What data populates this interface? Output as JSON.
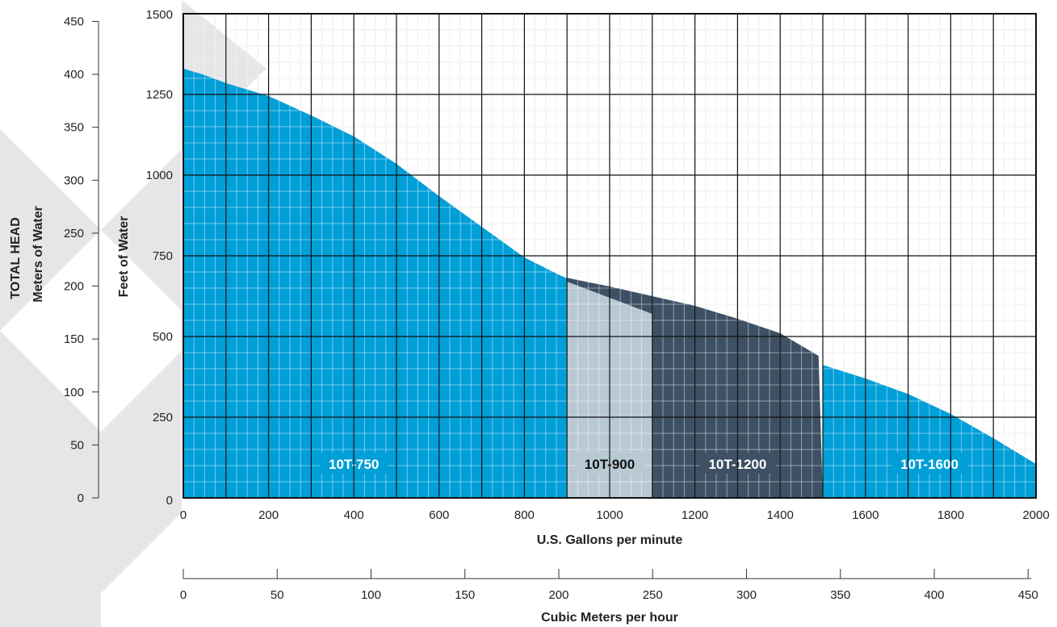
{
  "chart_data": {
    "type": "area",
    "title": "",
    "left_axis": {
      "label_line1": "TOTAL HEAD",
      "label_line2": "Meters of Water",
      "range": [
        0,
        457.2
      ],
      "ticks": [
        0,
        50,
        100,
        150,
        200,
        250,
        300,
        350,
        400,
        450
      ]
    },
    "right_axis": {
      "label": "Feet of Water",
      "range": [
        0,
        1500
      ],
      "ticks": [
        0,
        250,
        500,
        750,
        1000,
        1250,
        1500
      ]
    },
    "x_axis": {
      "label": "U.S. Gallons per minute",
      "range": [
        0,
        2000
      ],
      "ticks": [
        0,
        200,
        400,
        600,
        800,
        1000,
        1200,
        1400,
        1600,
        1800,
        2000
      ]
    },
    "secondary_x_axis": {
      "label": "Cubic Meters per hour",
      "range": [
        0,
        454.2
      ],
      "ticks": [
        0,
        50,
        100,
        150,
        200,
        250,
        300,
        350,
        400,
        450
      ]
    },
    "grid": true,
    "colors": {
      "10T-750": "#009fd8",
      "10T-900": "#b8c9d4",
      "10T-1200": "#3d5064",
      "10T-1600": "#009fd8",
      "gridline": "#e2e2e2",
      "major_gridline": "#111111",
      "background_chevrons": "#e6e6e9"
    },
    "regions": [
      {
        "name": "10T-750",
        "gpm": [
          0,
          50,
          100,
          200,
          300,
          400,
          500,
          600,
          700,
          800,
          880,
          900
        ],
        "feet": [
          1330,
          1310,
          1285,
          1245,
          1185,
          1120,
          1035,
          935,
          840,
          745,
          692,
          680
        ],
        "label_at": [
          400,
          105
        ],
        "label_color": "#ffffff"
      },
      {
        "name": "10T-900",
        "gpm": [
          900,
          1100
        ],
        "feet": [
          670,
          570
        ],
        "label_at": [
          1000,
          105
        ],
        "label_color": "#111111"
      },
      {
        "name": "10T-1200",
        "gpm": [
          900,
          950,
          1000,
          1100,
          1200,
          1300,
          1400,
          1500
        ],
        "feet": [
          682,
          668,
          655,
          625,
          595,
          555,
          510,
          450
        ],
        "cut_gpm": 1490,
        "cut_feet": 440,
        "label_at": [
          1300,
          105
        ],
        "label_color": "#ffffff"
      },
      {
        "name": "10T-1600",
        "gpm": [
          1500,
          1600,
          1700,
          1800,
          1900,
          2000
        ],
        "feet": [
          412,
          370,
          322,
          260,
          185,
          105
        ],
        "label_at": [
          1750,
          105
        ],
        "label_color": "#ffffff"
      }
    ]
  }
}
